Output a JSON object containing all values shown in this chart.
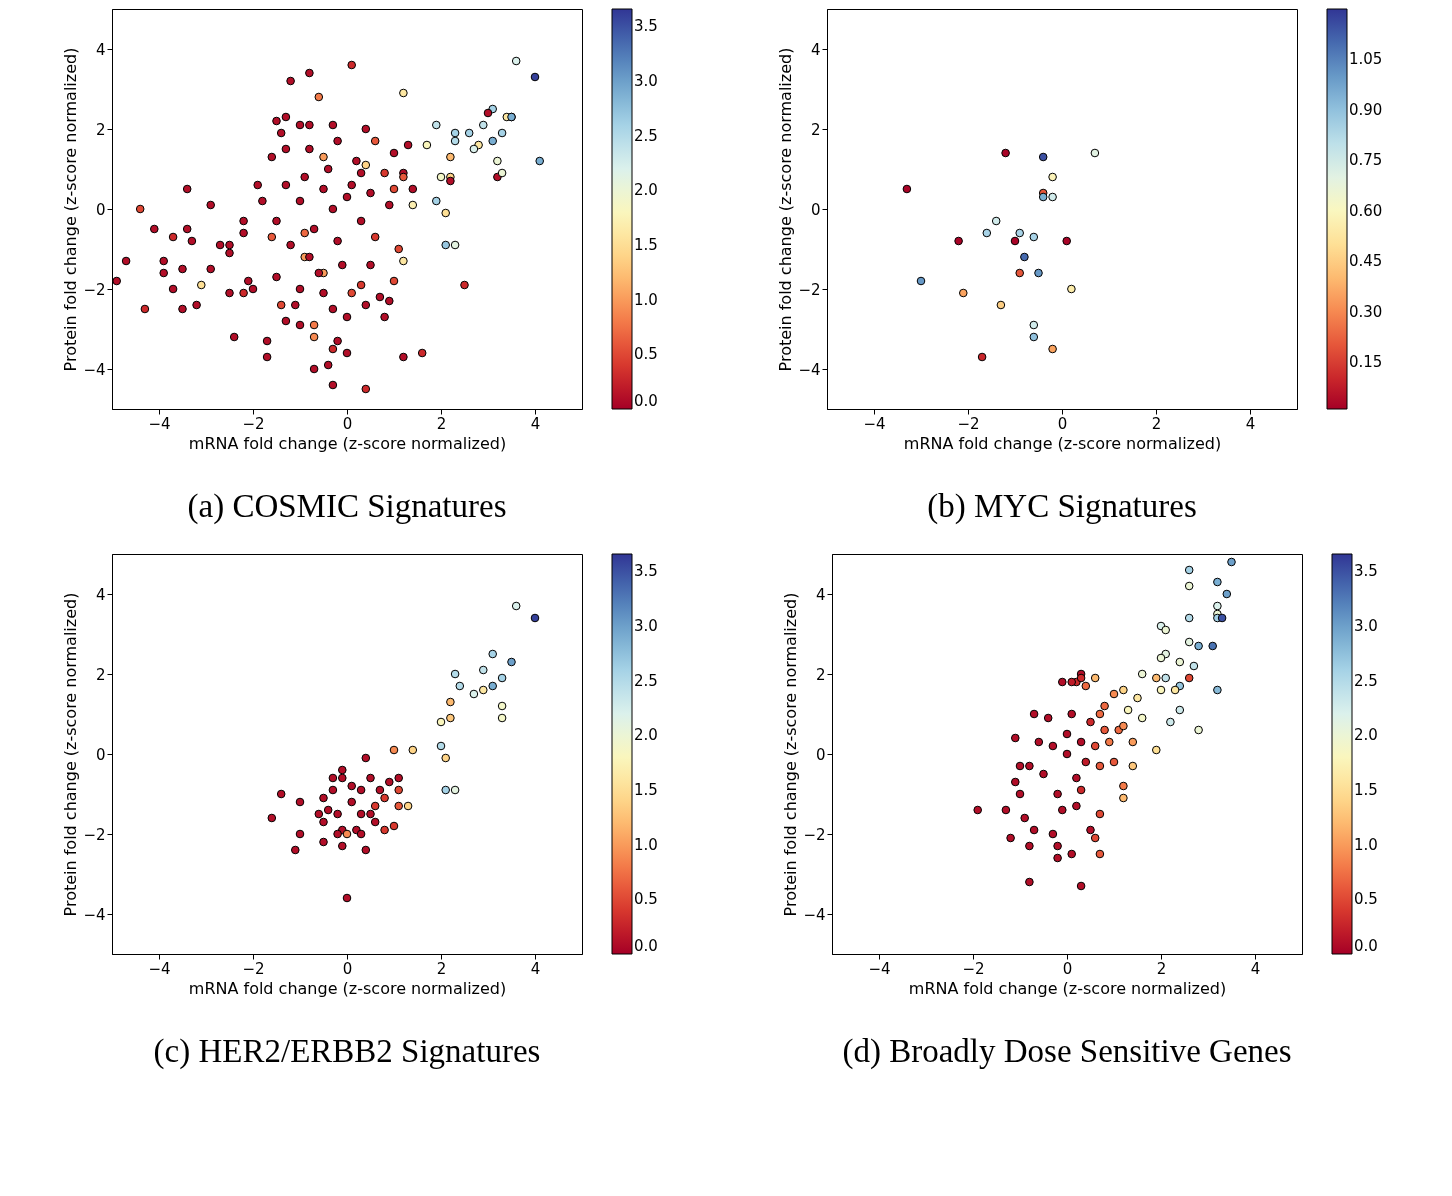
{
  "chart_data": [
    {
      "type": "scatter",
      "title": "(a) COSMIC Signatures",
      "xlabel": "mRNA fold change (z-score normalized)",
      "ylabel": "Protein fold change (z-score normalized)",
      "marker": "circle",
      "xlim": [
        -5,
        5
      ],
      "ylim": [
        -5,
        5
      ],
      "xticks": [
        -4,
        -2,
        0,
        2,
        4
      ],
      "yticks": [
        -4,
        -2,
        0,
        2,
        4
      ],
      "clim": [
        0,
        3.66
      ],
      "cticks": [
        {
          "value": 0,
          "label": "0.0"
        },
        0.5,
        {
          "value": 1,
          "label": "1.0"
        },
        1.5,
        {
          "value": 2,
          "label": "2.0"
        },
        2.5,
        {
          "value": 3,
          "label": "3.0"
        },
        3.5
      ],
      "x": [
        3.6,
        4.0,
        3.1,
        3.0,
        3.5,
        3.4,
        3.5,
        1.9,
        2.3,
        2.6,
        2.9,
        3.3,
        1.7,
        2.3,
        2.8,
        2.7,
        3.1,
        2.2,
        3.2,
        4.1,
        2.0,
        2.2,
        2.2,
        3.2,
        3.3,
        1.9,
        2.1,
        2.1,
        2.3,
        2.5,
        0.1,
        -0.8,
        -1.2,
        -0.6,
        1.2,
        -1.3,
        -1.5,
        -1.4,
        -1.0,
        -0.8,
        -0.3,
        0.4,
        1.3,
        0.6,
        1.0,
        -0.2,
        -0.8,
        -1.3,
        -1.6,
        -0.5,
        0.4,
        1.2,
        1.4,
        1.4,
        -1.9,
        -3.4,
        -4.4,
        -4.1,
        -3.4,
        -2.9,
        -4.7,
        -4.9,
        -4.3,
        -3.9,
        -3.9,
        -3.7,
        -3.7,
        -3.5,
        -3.5,
        -3.2,
        -3.3,
        -3.1,
        -2.9,
        -2.7,
        -2.5,
        -2.5,
        -2.4,
        -2.2,
        -2.1,
        -2.0,
        -2.2,
        -1.7,
        -1.7,
        -1.5,
        -1.3,
        -1.4,
        -1.1,
        -1.0,
        -0.7,
        -0.4,
        -0.3,
        0.4,
        -0.3,
        0.0,
        -0.2,
        -0.7,
        -0.7,
        0.0,
        -0.3,
        0.4,
        0.8,
        0.7,
        0.9,
        1.0,
        1.2,
        1.6,
        1.1,
        1.2,
        -0.9,
        -0.5,
        -0.9,
        -1.6,
        -1.0,
        -0.5,
        0.1,
        0.3,
        -1.5,
        -1.0,
        -0.5,
        0.0,
        0.5,
        0.8,
        -0.7,
        -0.2,
        0.3,
        0.6,
        -1.2,
        -0.4,
        0.2,
        -0.9,
        0.9,
        -0.1,
        -0.6,
        0.5,
        -2.2,
        -1.8,
        -2.5,
        0.1,
        1.0,
        1.2,
        -0.3,
        0.3,
        -1.3,
        -0.8
      ],
      "values": [
        3.7,
        3.3,
        2.5,
        2.4,
        2.3,
        2.3,
        2.3,
        2.1,
        1.9,
        1.9,
        2.1,
        1.9,
        1.6,
        1.7,
        1.6,
        1.5,
        1.7,
        1.3,
        1.2,
        1.2,
        0.8,
        0.8,
        0.7,
        0.8,
        0.9,
        0.2,
        -0.1,
        -0.9,
        -0.9,
        -1.9,
        3.6,
        3.4,
        3.2,
        2.8,
        2.9,
        2.3,
        2.2,
        1.9,
        2.1,
        2.1,
        2.1,
        2.0,
        1.6,
        1.7,
        1.4,
        1.7,
        1.5,
        1.5,
        1.3,
        1.3,
        1.1,
        0.9,
        0.1,
        0.5,
        0.6,
        0.5,
        0.0,
        -0.5,
        -0.5,
        0.1,
        -1.3,
        -1.8,
        -2.5,
        -1.3,
        -1.6,
        -2.0,
        -0.7,
        -1.5,
        -2.5,
        -2.4,
        -0.8,
        -1.9,
        -1.5,
        -0.9,
        -1.1,
        -2.1,
        -3.2,
        -0.6,
        -1.8,
        -2.0,
        -2.1,
        -3.7,
        -3.3,
        -1.7,
        -2.8,
        -2.4,
        -2.4,
        -2.9,
        -4.0,
        -3.9,
        -4.4,
        -4.5,
        -3.5,
        -3.6,
        -3.3,
        -2.9,
        -3.2,
        -2.7,
        -2.5,
        -2.4,
        -2.7,
        -2.2,
        -2.3,
        -1.8,
        -3.7,
        -3.6,
        -1.0,
        -1.3,
        -1.2,
        -1.6,
        -0.6,
        -0.7,
        -2.0,
        -2.1,
        -2.1,
        -1.9,
        -0.3,
        0.2,
        0.5,
        0.3,
        0.4,
        0.9,
        -0.5,
        -0.8,
        -0.3,
        -0.7,
        -0.9,
        1.0,
        1.2,
        0.8,
        0.1,
        -1.4,
        -1.6,
        -1.4,
        -0.3,
        0.2,
        -0.9,
        0.6,
        0.5,
        0.8,
        0.0,
        0.9,
        0.6,
        -1.2
      ],
      "cvalues": [
        2.2,
        3.6,
        2.6,
        0.1,
        0.1,
        1.6,
        2.9,
        2.4,
        2.6,
        2.6,
        2.4,
        2.6,
        1.8,
        2.5,
        1.6,
        2.2,
        2.9,
        1.2,
        2.0,
        2.9,
        1.9,
        1.4,
        0.1,
        0.1,
        2.0,
        2.6,
        1.5,
        2.7,
        2.1,
        0.3,
        0.3,
        0.1,
        0.1,
        0.8,
        1.6,
        0.1,
        0.1,
        0.1,
        0.1,
        0.1,
        0.1,
        0.1,
        0.1,
        0.6,
        0.1,
        0.1,
        0.1,
        0.1,
        0.1,
        1.0,
        1.4,
        0.1,
        1.7,
        0.1,
        0.1,
        0.1,
        0.5,
        0.1,
        0.1,
        0.1,
        0.1,
        0.1,
        0.3,
        0.1,
        0.1,
        0.1,
        0.3,
        0.1,
        0.1,
        0.1,
        0.1,
        1.5,
        0.1,
        0.1,
        0.1,
        0.1,
        0.1,
        0.1,
        0.1,
        0.1,
        0.3,
        0.1,
        0.1,
        0.1,
        0.1,
        0.5,
        0.1,
        0.1,
        0.1,
        0.1,
        0.1,
        0.3,
        0.3,
        0.1,
        0.1,
        0.8,
        0.9,
        0.1,
        0.1,
        0.1,
        0.1,
        0.1,
        0.1,
        0.5,
        0.1,
        0.3,
        0.5,
        1.6,
        1.0,
        1.0,
        0.7,
        0.6,
        0.1,
        0.1,
        0.5,
        0.4,
        0.1,
        0.1,
        0.1,
        0.1,
        0.1,
        0.4,
        0.1,
        0.1,
        0.1,
        0.4,
        0.1,
        0.1,
        0.1,
        0.1,
        0.1,
        0.1,
        0.1,
        0.1,
        0.1,
        0.1,
        0.1,
        0.1,
        0.5,
        0.6,
        0.1,
        0.1,
        0.1,
        0.1
      ]
    },
    {
      "type": "scatter",
      "title": "(b) MYC Signatures",
      "xlabel": "mRNA fold change (z-score normalized)",
      "ylabel": "Protein fold change (z-score normalized)",
      "marker": "circle",
      "xlim": [
        -5,
        5
      ],
      "ylim": [
        -5,
        5
      ],
      "xticks": [
        -4,
        -2,
        0,
        2,
        4
      ],
      "yticks": [
        -4,
        -2,
        0,
        2,
        4
      ],
      "clim": [
        0.01,
        1.2
      ],
      "cticks": [
        0.15,
        {
          "value": 0.3,
          "label": "0.30"
        },
        0.45,
        {
          "value": 0.6,
          "label": "0.60"
        },
        0.75,
        {
          "value": 0.9,
          "label": "0.90"
        },
        1.05
      ],
      "x": [
        -1.2,
        -0.4,
        0.7,
        -0.2,
        -3.3,
        -0.4,
        -0.4,
        -0.2,
        -1.4,
        -1.6,
        -0.9,
        -0.6,
        -2.2,
        -1.0,
        0.1,
        -0.8,
        -0.9,
        -0.5,
        -3.0,
        0.2,
        -2.1,
        -1.3,
        -0.6,
        -0.6,
        -0.2,
        -1.7
      ],
      "values": [
        1.4,
        1.3,
        1.4,
        0.8,
        0.5,
        0.4,
        0.3,
        0.3,
        -0.3,
        -0.6,
        -0.6,
        -0.7,
        -0.8,
        -0.8,
        -0.8,
        -1.2,
        -1.6,
        -1.6,
        -1.8,
        -2.0,
        -2.1,
        -2.4,
        -2.9,
        -3.2,
        -3.5,
        -3.7
      ],
      "cvalues": [
        0.02,
        1.15,
        0.7,
        0.58,
        0.02,
        0.2,
        0.95,
        0.75,
        0.75,
        0.85,
        0.85,
        0.85,
        0.02,
        0.02,
        0.02,
        1.1,
        0.2,
        1.0,
        1.0,
        0.55,
        0.35,
        0.45,
        0.75,
        0.9,
        0.35,
        0.1
      ]
    },
    {
      "type": "scatter",
      "title": "(c) HER2/ERBB2 Signatures",
      "xlabel": "mRNA fold change (z-score normalized)",
      "ylabel": "Protein fold change (z-score normalized)",
      "marker": "circle",
      "xlim": [
        -5,
        5
      ],
      "ylim": [
        -5,
        5
      ],
      "xticks": [
        -4,
        -2,
        0,
        2,
        4
      ],
      "yticks": [
        -4,
        -2,
        0,
        2,
        4
      ],
      "clim": [
        0,
        3.66
      ],
      "cticks": [
        {
          "value": 0,
          "label": "0.0"
        },
        0.5,
        {
          "value": 1,
          "label": "1.0"
        },
        1.5,
        {
          "value": 2,
          "label": "2.0"
        },
        2.5,
        {
          "value": 3,
          "label": "3.0"
        },
        3.5
      ],
      "x": [
        3.6,
        4.0,
        3.1,
        3.5,
        2.9,
        2.3,
        2.4,
        3.3,
        3.1,
        2.7,
        2.9,
        2.2,
        3.3,
        3.3,
        2.0,
        2.2,
        1.0,
        1.4,
        2.0,
        2.1,
        2.1,
        2.3,
        0.4,
        -0.1,
        -0.3,
        -0.1,
        -1.4,
        -1.0,
        -0.5,
        -0.3,
        0.1,
        0.5,
        0.9,
        1.1,
        1.1,
        0.7,
        0.3,
        0.8,
        1.1,
        1.3,
        -1.6,
        -0.6,
        -0.4,
        -0.2,
        0.1,
        0.3,
        0.5,
        0.6,
        -0.5,
        -0.1,
        0.2,
        0.6,
        1.0,
        0.8,
        0.0,
        0.3,
        -1.0,
        -0.5,
        -0.2,
        -1.1,
        -0.1,
        0.4,
        0.0
      ],
      "values": [
        3.7,
        3.4,
        2.5,
        2.3,
        2.1,
        2.0,
        1.7,
        1.9,
        1.7,
        1.5,
        1.6,
        1.3,
        1.2,
        0.9,
        0.8,
        0.9,
        0.1,
        0.1,
        0.2,
        -0.1,
        -0.9,
        -0.9,
        -0.1,
        -0.4,
        -0.6,
        -0.6,
        -1.0,
        -1.2,
        -1.1,
        -0.9,
        -0.8,
        -0.6,
        -0.7,
        -0.6,
        -0.9,
        -0.9,
        -0.9,
        -1.1,
        -1.3,
        -1.3,
        -1.6,
        -1.5,
        -1.4,
        -1.5,
        -1.2,
        -1.5,
        -1.5,
        -1.3,
        -1.7,
        -1.9,
        -1.9,
        -1.7,
        -1.8,
        -1.9,
        -2.0,
        -2.0,
        -2.0,
        -2.2,
        -2.0,
        -2.4,
        -2.3,
        -2.4,
        -3.6
      ],
      "cvalues": [
        2.2,
        3.6,
        2.6,
        3.0,
        2.4,
        2.5,
        2.5,
        2.6,
        2.9,
        2.2,
        1.6,
        1.2,
        1.9,
        1.9,
        1.8,
        1.3,
        0.9,
        1.4,
        2.5,
        1.4,
        2.6,
        2.1,
        0.1,
        0.1,
        0.1,
        0.1,
        0.1,
        0.1,
        0.1,
        0.1,
        0.1,
        0.1,
        0.1,
        0.1,
        0.5,
        0.1,
        0.1,
        0.4,
        0.6,
        1.4,
        0.1,
        0.1,
        0.1,
        0.1,
        0.1,
        0.1,
        0.1,
        0.4,
        0.1,
        0.1,
        0.1,
        0.1,
        0.4,
        0.4,
        0.9,
        0.1,
        0.1,
        0.1,
        0.1,
        0.1,
        0.1,
        0.1,
        0.1
      ]
    },
    {
      "type": "scatter",
      "title": "(d) Broadly Dose Sensitive Genes",
      "xlabel": "mRNA fold change (z-score normalized)",
      "ylabel": "Protein fold change (z-score normalized)",
      "marker": "circle",
      "xlim": [
        -5,
        5
      ],
      "ylim": [
        -5,
        5
      ],
      "xticks": [
        -4,
        -2,
        0,
        2,
        4
      ],
      "yticks": [
        -4,
        -2,
        0,
        2,
        4
      ],
      "clim": [
        0,
        3.66
      ],
      "cticks": [
        {
          "value": 0,
          "label": "0.0"
        },
        0.5,
        {
          "value": 1,
          "label": "1.0"
        },
        1.5,
        {
          "value": 2,
          "label": "2.0"
        },
        2.5,
        {
          "value": 3,
          "label": "3.0"
        },
        3.5
      ],
      "x": [
        3.5,
        2.6,
        2.6,
        3.2,
        3.4,
        3.2,
        3.2,
        3.2,
        3.3,
        2.6,
        2.0,
        2.1,
        2.6,
        2.8,
        3.1,
        2.1,
        2.0,
        2.4,
        2.7,
        1.6,
        2.6,
        2.4,
        3.2,
        2.1,
        1.9,
        2.3,
        2.0,
        2.4,
        2.2,
        2.8,
        1.9,
        1.5,
        1.2,
        1.0,
        1.3,
        1.6,
        0.8,
        0.4,
        0.2,
        -0.1,
        1.1,
        0.9,
        1.4,
        1.2,
        1.0,
        0.7,
        0.3,
        0.6,
        0.1,
        0.3,
        -0.7,
        -1.1,
        -1.9,
        -1.3,
        -1.2,
        -0.8,
        -0.2,
        -0.2,
        0.1,
        0.7,
        -0.8,
        0.3,
        1.2,
        1.4,
        1.2,
        0.6,
        -1.0,
        -1.1,
        -1.0,
        -0.9,
        -0.7,
        -0.3,
        0.5,
        0.7,
        -0.5,
        0.0,
        0.3,
        -0.3,
        0.2,
        -0.2,
        0.5,
        0.1,
        -0.6,
        0.4,
        -0.1,
        0.6,
        0.8,
        0.2,
        -0.4,
        0.0,
        0.7,
        -0.8,
        0.3
      ],
      "values": [
        4.8,
        4.6,
        4.2,
        4.3,
        4.0,
        3.7,
        3.5,
        3.4,
        3.4,
        3.4,
        3.2,
        3.1,
        2.8,
        2.7,
        2.7,
        2.5,
        2.4,
        2.3,
        2.2,
        2.0,
        1.9,
        1.7,
        1.6,
        1.9,
        1.9,
        1.6,
        1.6,
        1.1,
        0.8,
        0.6,
        0.1,
        1.4,
        1.6,
        1.5,
        1.1,
        0.9,
        1.2,
        1.7,
        1.8,
        1.8,
        0.6,
        0.3,
        0.3,
        0.7,
        -0.2,
        -0.3,
        2.0,
        1.9,
        1.8,
        1.9,
        1.0,
        0.4,
        -1.4,
        -1.4,
        -2.1,
        -2.3,
        -2.3,
        -2.6,
        -2.5,
        -2.5,
        -3.2,
        -3.3,
        -1.1,
        -0.3,
        -0.8,
        -2.1,
        -1.0,
        -0.7,
        -0.3,
        -1.6,
        -1.9,
        -2.0,
        -1.9,
        -1.5,
        -0.5,
        0.0,
        0.3,
        0.2,
        -0.6,
        -1.0,
        0.8,
        1.0,
        0.3,
        -0.2,
        -1.4,
        0.2,
        0.6,
        -1.3,
        0.9,
        0.5,
        1.0,
        -0.3,
        -0.9
      ],
      "cvalues": [
        3.0,
        2.6,
        2.0,
        2.9,
        3.0,
        2.2,
        2.0,
        2.6,
        3.5,
        2.5,
        2.2,
        2.0,
        2.1,
        2.9,
        3.3,
        2.1,
        2.0,
        2.0,
        2.4,
        2.0,
        0.5,
        2.7,
        2.8,
        2.4,
        1.2,
        1.6,
        1.8,
        2.3,
        2.3,
        2.0,
        1.5,
        1.6,
        1.4,
        0.9,
        1.8,
        1.9,
        0.7,
        0.7,
        0.3,
        0.1,
        0.7,
        0.8,
        1.0,
        0.9,
        0.6,
        0.6,
        0.1,
        1.2,
        0.2,
        0.3,
        0.1,
        0.1,
        0.1,
        0.1,
        0.1,
        0.1,
        0.1,
        0.1,
        0.1,
        0.6,
        0.1,
        0.1,
        1.2,
        1.3,
        0.8,
        0.5,
        0.1,
        0.1,
        0.1,
        0.1,
        0.1,
        0.1,
        0.1,
        0.5,
        0.1,
        0.1,
        0.1,
        0.1,
        0.1,
        0.1,
        0.3,
        0.1,
        0.1,
        0.2,
        0.1,
        0.5,
        0.6,
        0.1,
        0.1,
        0.1,
        0.7,
        0.1,
        0.3
      ]
    }
  ]
}
